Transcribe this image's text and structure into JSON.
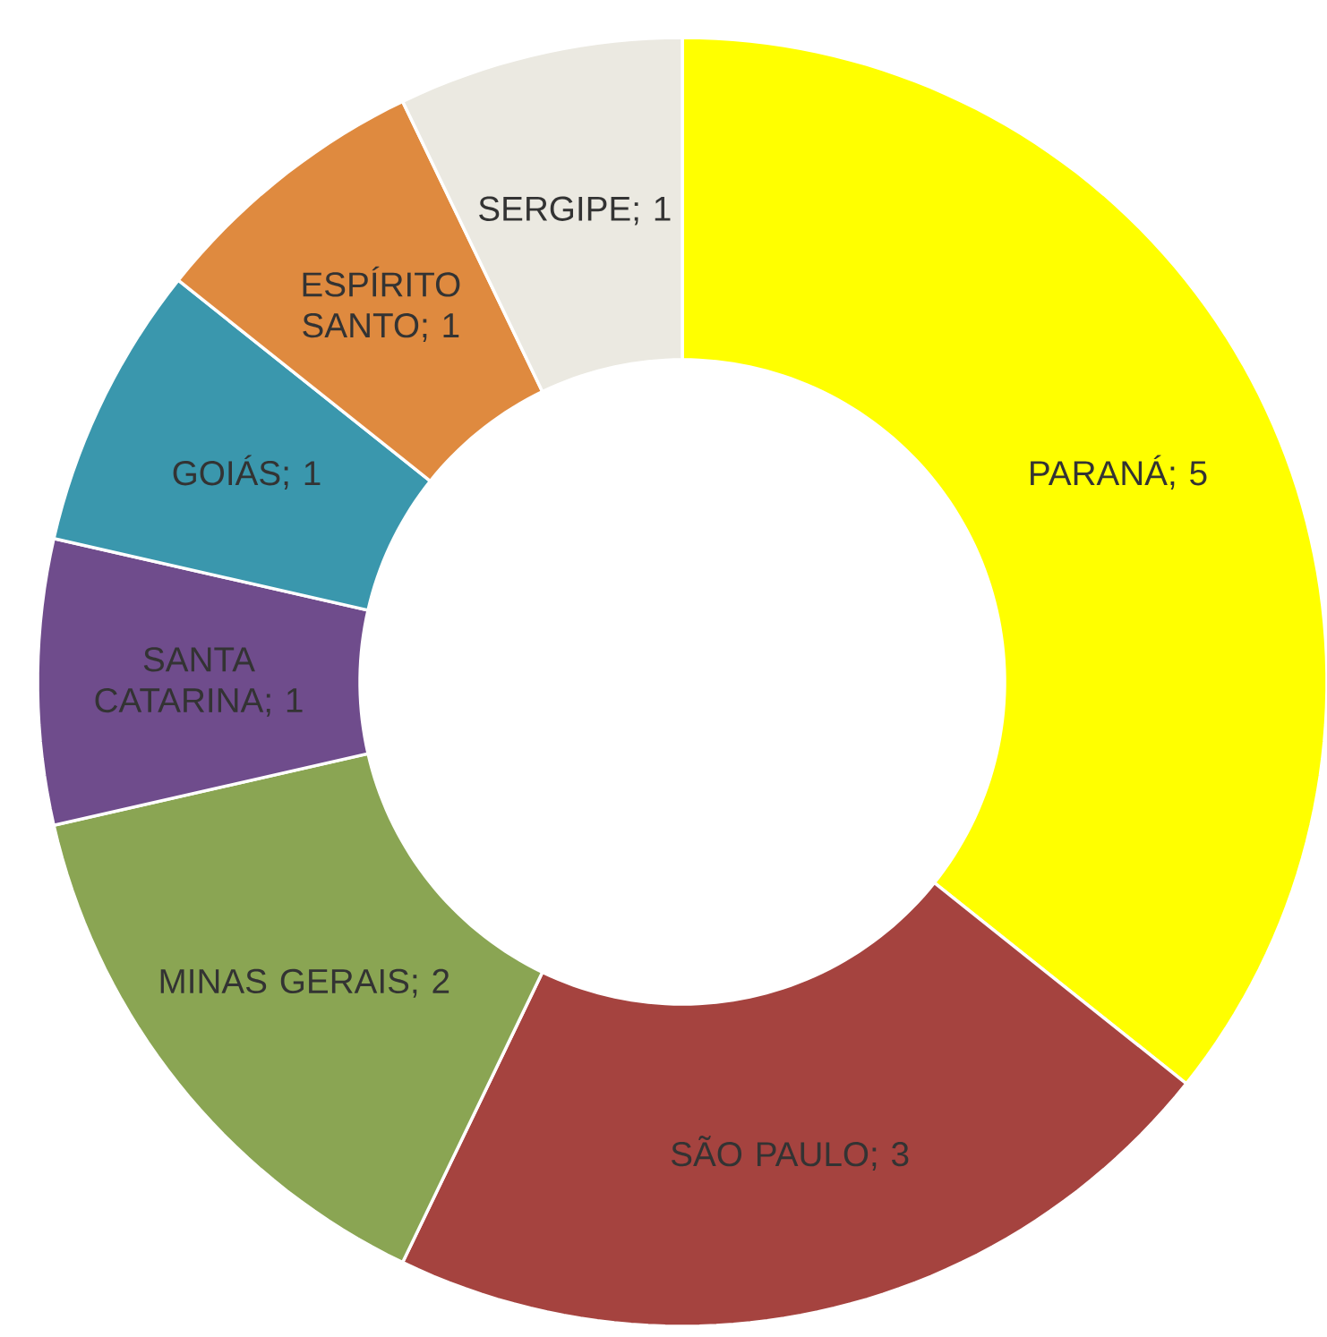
{
  "chart_data": {
    "type": "donut",
    "categories": [
      "PARANÁ",
      "SÃO PAULO",
      "MINAS GERAIS",
      "SANTA CATARINA",
      "GOIÁS",
      "ESPÍRITO SANTO",
      "SERGIPE"
    ],
    "values": [
      5,
      3,
      2,
      1,
      1,
      1,
      1
    ],
    "colors": [
      "#ffff00",
      "#a5433f",
      "#8aa553",
      "#6f4c8c",
      "#3a97ad",
      "#df8a3f",
      "#ebe9e1"
    ],
    "value_labels": [
      "; 5",
      "; 3",
      "; 2",
      "; 1",
      "; 1",
      "; 1",
      "; 1"
    ]
  }
}
